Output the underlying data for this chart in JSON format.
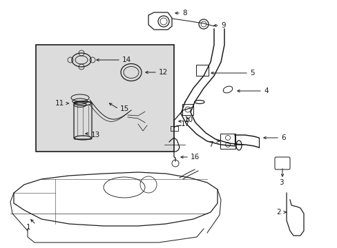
{
  "background_color": "#ffffff",
  "line_color": "#1a1a1a",
  "box_fill": "#dcdcdc",
  "fig_width": 4.89,
  "fig_height": 3.6,
  "dpi": 100,
  "label_fontsize": 7.5,
  "lw": 0.9
}
